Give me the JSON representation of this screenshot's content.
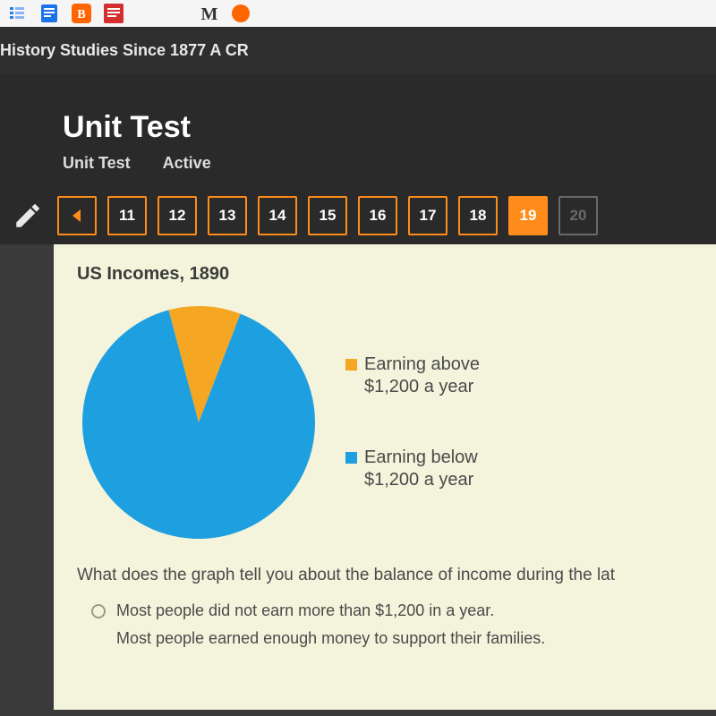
{
  "breadcrumb": "History Studies Since 1877 A CR",
  "page_title": "Unit Test",
  "tabs": {
    "primary": "Unit Test",
    "secondary": "Active"
  },
  "nav": {
    "numbers": [
      "11",
      "12",
      "13",
      "14",
      "15",
      "16",
      "17",
      "18",
      "19",
      "20"
    ],
    "active_index": 8,
    "disabled_index": 9
  },
  "chart": {
    "type": "pie",
    "title": "US Incomes, 1890",
    "background_color": "#f3f4db",
    "slices": [
      {
        "label": "Earning above\n$1,200 a year",
        "value": 10,
        "color": "#f5a623"
      },
      {
        "label": "Earning below\n$1,200 a year",
        "value": 90,
        "color": "#1e9fe0"
      }
    ],
    "radius": 130,
    "start_angle_deg": -15,
    "legend_fontsize": 20,
    "legend_text_color": "#4a4a4a",
    "title_fontsize": 20,
    "title_color": "#3c3c3c"
  },
  "question": "What does the graph tell you about the balance of income during the lat",
  "answers": [
    "Most people did not earn more than $1,200 in a year.",
    "Most people earned enough money to support their families."
  ],
  "legend_labels": {
    "above": "Earning above $1,200 a year",
    "below": "Earning below $1,200 a year"
  }
}
